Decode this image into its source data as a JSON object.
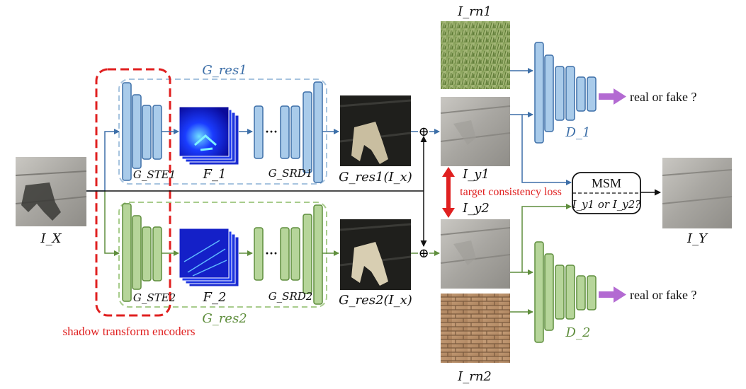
{
  "labels": {
    "input": "I_X",
    "output": "I_Y",
    "g_res1": "G_res1",
    "g_res2": "G_res2",
    "g_ste1": "G_STE1",
    "g_ste2": "G_STE2",
    "g_srd1": "G_SRD1",
    "g_srd2": "G_SRD2",
    "f1": "F_1",
    "f2": "F_2",
    "g_res1_out": "G_res1(I_x)",
    "g_res2_out": "G_res2(I_x)",
    "i_rn1": "I_rn1",
    "i_rn2": "I_rn2",
    "i_y1": "I_y1",
    "i_y2": "I_y2",
    "d1": "D_1",
    "d2": "D_2",
    "dots1": "···",
    "dots2": "···",
    "plus1": "⊕",
    "plus2": "⊕"
  },
  "text": {
    "real_fake_1": "real or fake ?",
    "real_fake_2": "real or fake ?",
    "msm_title": "MSM",
    "msm_choice": "I_y1 or I_y2?",
    "target_loss": "target consistency loss",
    "shadow_encoders": "shadow transform encoders"
  },
  "colors": {
    "blue_fill": "#a9cbea",
    "blue_stroke": "#3d6fa8",
    "green_fill": "#b6d59a",
    "green_stroke": "#5f8e3d",
    "red": "#e02020",
    "purple": "#b36ad2",
    "blue_dashed": "#a7c4df",
    "green_dashed": "#a8cc8c",
    "blue_text": "#3d6fa8",
    "green_text": "#5f8e3d"
  }
}
